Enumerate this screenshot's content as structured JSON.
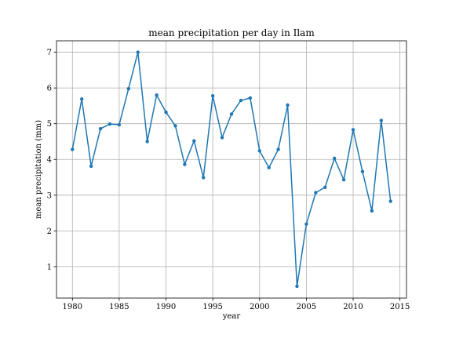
{
  "chart_data": {
    "type": "line",
    "title": "mean precipitation per day in Ilam",
    "xlabel": "year",
    "ylabel": "mean precipitation (mm)",
    "xlim": [
      1978.3,
      2015.7
    ],
    "ylim": [
      0.12,
      7.32
    ],
    "xticks": [
      1980,
      1985,
      1990,
      1995,
      2000,
      2005,
      2010,
      2015
    ],
    "yticks": [
      1,
      2,
      3,
      4,
      5,
      6,
      7
    ],
    "grid": true,
    "colors": {
      "line": "#1f77b4",
      "grid": "#b0b0b0"
    },
    "series": [
      {
        "x": [
          1980,
          1981,
          1982,
          1983,
          1984,
          1985,
          1986,
          1987,
          1988,
          1989,
          1990,
          1991,
          1992,
          1993,
          1994,
          1995,
          1996,
          1997,
          1998,
          1999,
          2000,
          2001,
          2002,
          2003,
          2004,
          2005,
          2006,
          2007,
          2008,
          2009,
          2010,
          2011,
          2012,
          2013,
          2014
        ],
        "y": [
          4.28,
          5.69,
          3.81,
          4.86,
          4.99,
          4.97,
          5.98,
          7.0,
          4.5,
          5.8,
          5.32,
          4.94,
          3.86,
          4.52,
          3.49,
          5.78,
          4.61,
          5.27,
          5.65,
          5.72,
          4.24,
          3.77,
          4.28,
          5.52,
          0.45,
          2.19,
          3.07,
          3.22,
          4.03,
          3.43,
          4.83,
          3.66,
          2.56,
          5.09,
          2.83
        ]
      }
    ]
  }
}
